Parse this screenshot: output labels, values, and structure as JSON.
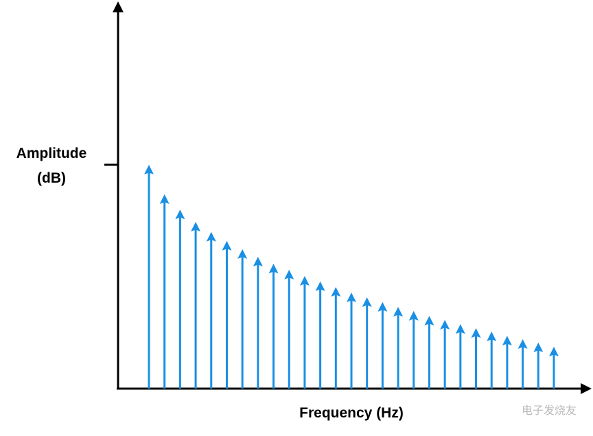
{
  "chart_data": {
    "type": "stem",
    "y_label_line1": "Amplitude",
    "y_label_line2": "(dB)",
    "x_label": "Frequency (Hz)",
    "watermark": "电子发烧友",
    "color": "#1a8fe3",
    "ylim": [
      0,
      170
    ],
    "categories": [
      null,
      null,
      null,
      null,
      null,
      null,
      null,
      null,
      null,
      null,
      null,
      null,
      null,
      null,
      null,
      null,
      null,
      null,
      null,
      null,
      null,
      null,
      null,
      null,
      null,
      null,
      null
    ],
    "values": [
      100,
      86.8,
      80,
      74.5,
      70,
      66,
      62.3,
      58.9,
      55.8,
      53.1,
      50.3,
      47.9,
      45.4,
      42.9,
      40.8,
      38.7,
      36.5,
      34.7,
      32.5,
      30.7,
      28.8,
      27,
      25.5,
      23.6,
      22.1,
      20.6,
      18.7
    ]
  }
}
